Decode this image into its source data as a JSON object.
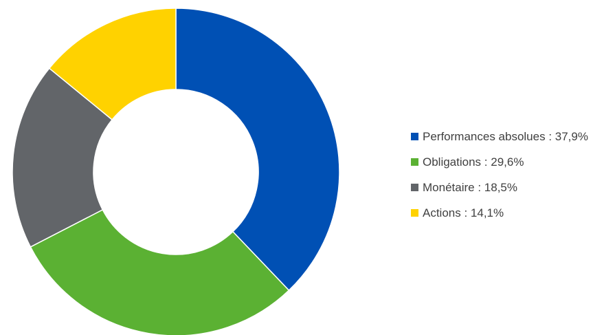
{
  "chart_data": {
    "type": "pie",
    "variant": "donut",
    "title": "",
    "legend_position": "right",
    "labels": [
      "Performances absolues",
      "Obligations",
      "Monétaire",
      "Actions"
    ],
    "values": [
      37.9,
      29.6,
      18.5,
      14.1
    ],
    "value_labels": [
      "37,9%",
      "29,6%",
      "18,5%",
      "14,1%"
    ],
    "colors": [
      "#0050B4",
      "#5BB133",
      "#626569",
      "#FFD200"
    ],
    "start_angle_deg": 0,
    "direction": "clockwise"
  }
}
